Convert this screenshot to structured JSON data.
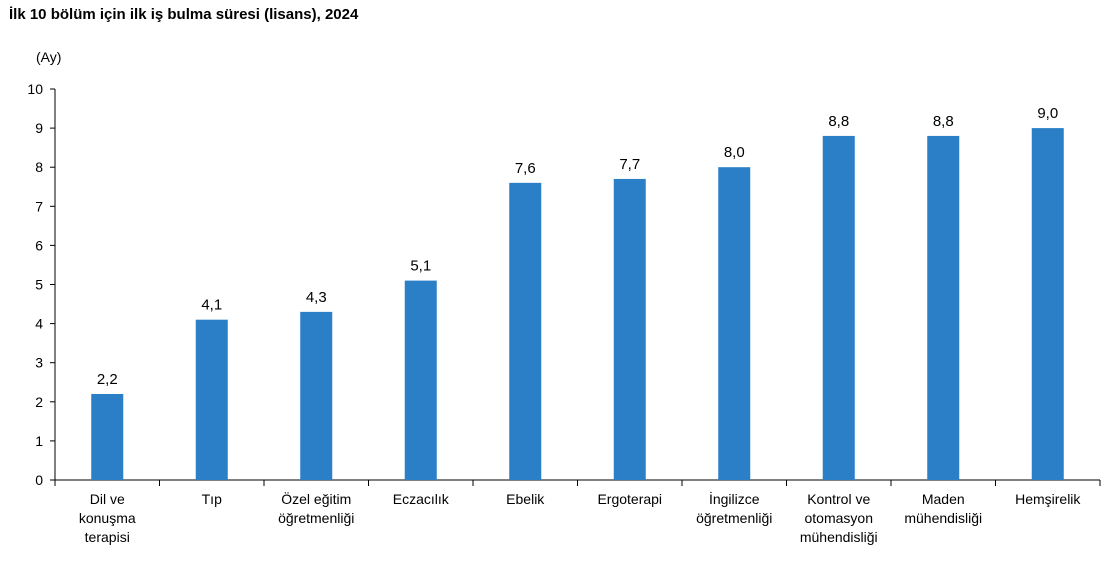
{
  "title": "İlk 10 bölüm için ilk iş bulma süresi (lisans), 2024",
  "chart_data": {
    "type": "bar",
    "title": "İlk 10 bölüm için ilk iş bulma süresi (lisans), 2024",
    "ylabel": "(Ay)",
    "xlabel": "",
    "ylim": [
      0,
      10
    ],
    "yticks": [
      "0",
      "1",
      "2",
      "3",
      "4",
      "5",
      "6",
      "7",
      "8",
      "9",
      "10"
    ],
    "grid": false,
    "bar_color": "#2a7fc6",
    "categories": [
      [
        "Dil ve",
        "konuşma",
        "terapisi"
      ],
      [
        "Tıp"
      ],
      [
        "Özel eğitim",
        "öğretmenliği"
      ],
      [
        "Eczacılık"
      ],
      [
        "Ebelik"
      ],
      [
        "Ergoterapi"
      ],
      [
        "İngilizce",
        "öğretmenliği"
      ],
      [
        "Kontrol ve",
        "otomasyon",
        "mühendisliği"
      ],
      [
        "Maden",
        "mühendisliği"
      ],
      [
        "Hemşirelik"
      ]
    ],
    "values": [
      2.2,
      4.1,
      4.3,
      5.1,
      7.6,
      7.7,
      8.0,
      8.8,
      8.8,
      9.0
    ],
    "value_labels": [
      "2,2",
      "4,1",
      "4,3",
      "5,1",
      "7,6",
      "7,7",
      "8,0",
      "8,8",
      "8,8",
      "9,0"
    ]
  }
}
